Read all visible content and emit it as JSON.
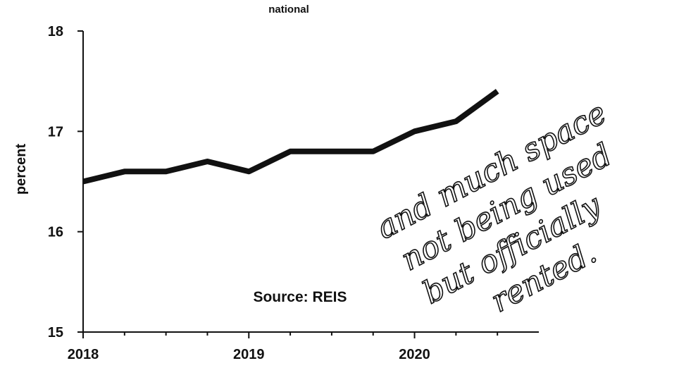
{
  "chart_data": {
    "type": "line",
    "title": "national",
    "ylabel": "percent",
    "xlabel": "",
    "ylim": [
      15,
      18
    ],
    "xlim": [
      2018,
      2020.75
    ],
    "yticks": [
      "15",
      "16",
      "17",
      "18"
    ],
    "xticks": [
      "2018",
      "2019",
      "2020"
    ],
    "grid": false,
    "series": [
      {
        "x": [
          2018.0,
          2018.25,
          2018.5,
          2018.75,
          2019.0,
          2019.25,
          2019.5,
          2019.75,
          2020.0,
          2020.25,
          2020.5
        ],
        "values": [
          16.5,
          16.6,
          16.6,
          16.7,
          16.6,
          16.8,
          16.8,
          16.8,
          17.0,
          17.1,
          17.4
        ]
      }
    ],
    "annotations": {
      "source": "Source: REIS",
      "handwritten": [
        "and much space",
        "not being used",
        "but officially",
        "rented."
      ]
    }
  }
}
